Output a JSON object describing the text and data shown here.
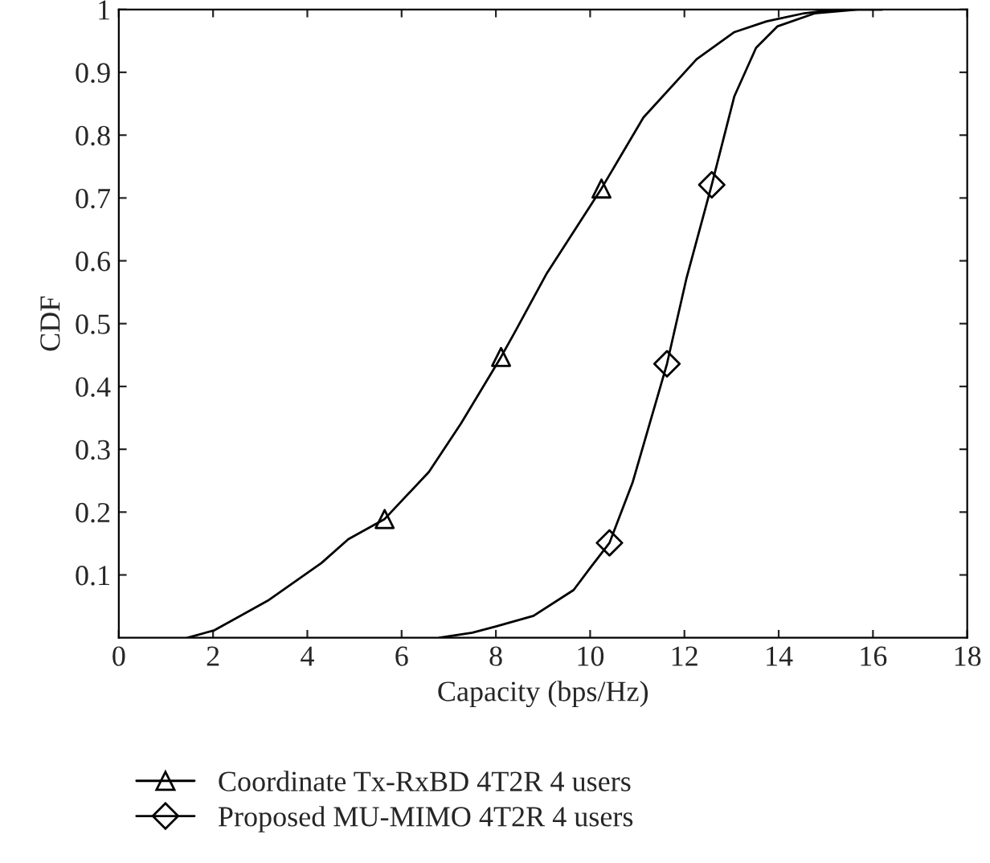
{
  "chart_data": {
    "type": "line",
    "xlabel": "Capacity (bps/Hz)",
    "ylabel": "CDF",
    "xlim": [
      0,
      18
    ],
    "xticks": [
      0,
      2,
      4,
      6,
      8,
      10,
      12,
      14,
      16,
      18
    ],
    "ylim": [
      0,
      1
    ],
    "yticks": [
      0.1,
      0.2,
      0.3,
      0.4,
      0.5,
      0.6,
      0.7,
      0.8,
      0.9,
      1
    ],
    "grid": false,
    "legend": "bottom",
    "line_style": "solid",
    "series": [
      {
        "name": "Coordinate Tx-RxBD 4T2R 4 users",
        "color": "#000000",
        "x": [
          1.46,
          2.03,
          3.16,
          4.3,
          4.87,
          5.64,
          6.58,
          7.26,
          8.11,
          8.4,
          9.08,
          10.24,
          11.13,
          12.26,
          13.06,
          13.74,
          14.54,
          15.22,
          16.2
        ],
        "values": [
          0,
          0.012,
          0.059,
          0.119,
          0.157,
          0.189,
          0.264,
          0.341,
          0.447,
          0.486,
          0.58,
          0.715,
          0.828,
          0.921,
          0.964,
          0.981,
          0.994,
          1,
          1
        ]
      },
      {
        "type": "scatter",
        "color": "#000000",
        "marker": "triangle",
        "x": [
          5.64,
          8.11,
          10.24
        ],
        "values": [
          0.189,
          0.447,
          0.715
        ]
      },
      {
        "name": "Proposed MU-MIMO 4T2R 4 users",
        "color": "#000000",
        "x": [
          6.8,
          7.5,
          8.0,
          8.8,
          9.65,
          9.99,
          10.41,
          10.9,
          11.36,
          11.63,
          12.04,
          12.58,
          13.06,
          13.52,
          13.97,
          14.77,
          15.68,
          16.2
        ],
        "values": [
          0,
          0.008,
          0.018,
          0.035,
          0.076,
          0.11,
          0.151,
          0.247,
          0.366,
          0.436,
          0.571,
          0.721,
          0.862,
          0.939,
          0.973,
          0.994,
          1,
          1
        ]
      },
      {
        "type": "scatter",
        "color": "#000000",
        "marker": "diamond",
        "x": [
          10.41,
          11.63,
          12.58
        ],
        "values": [
          0.151,
          0.436,
          0.721
        ]
      }
    ]
  }
}
